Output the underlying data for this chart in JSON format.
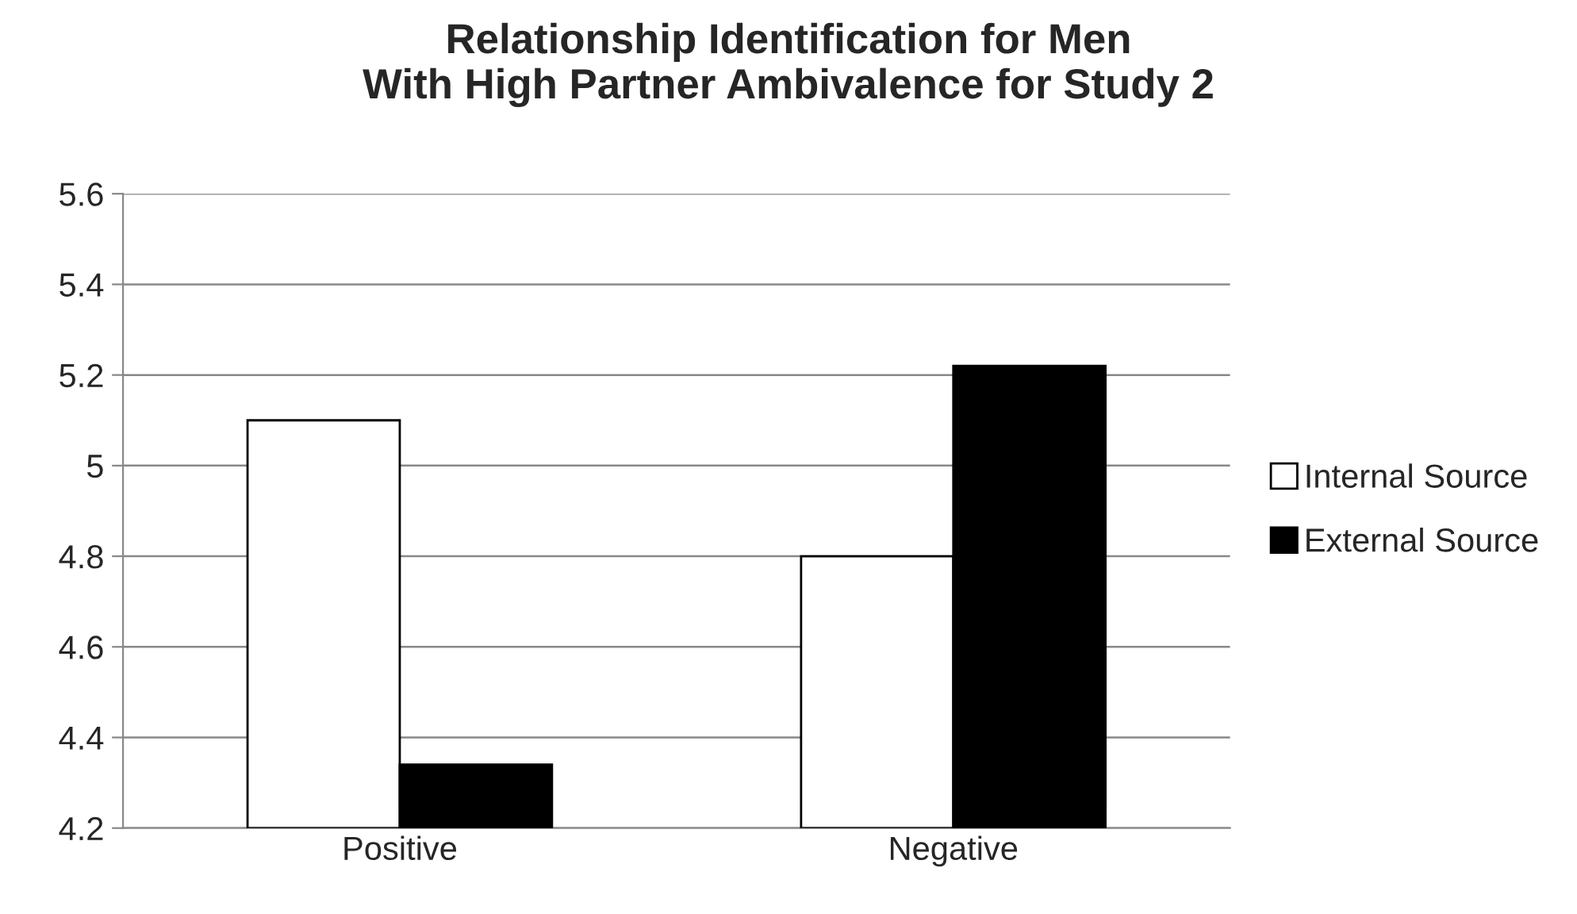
{
  "chart_data": {
    "type": "bar",
    "title": "Relationship Identification for Men\nWith High Partner Ambivalence for Study 2",
    "categories": [
      "Positive",
      "Negative"
    ],
    "series": [
      {
        "name": "Internal Source",
        "color": "#ffffff",
        "values": [
          5.1,
          4.8
        ]
      },
      {
        "name": "External Source",
        "color": "#000000",
        "values": [
          4.34,
          5.22
        ]
      }
    ],
    "ylim": [
      4.2,
      5.6
    ],
    "yticks": [
      {
        "value": 4.2,
        "label": "4.2"
      },
      {
        "value": 4.4,
        "label": "4.4"
      },
      {
        "value": 4.6,
        "label": "4.6"
      },
      {
        "value": 4.8,
        "label": "4.8"
      },
      {
        "value": 5.0,
        "label": "5"
      },
      {
        "value": 5.2,
        "label": "5.2"
      },
      {
        "value": 5.4,
        "label": "5.4"
      },
      {
        "value": 5.6,
        "label": "5.6"
      }
    ],
    "grid": "y",
    "legend": "right"
  }
}
